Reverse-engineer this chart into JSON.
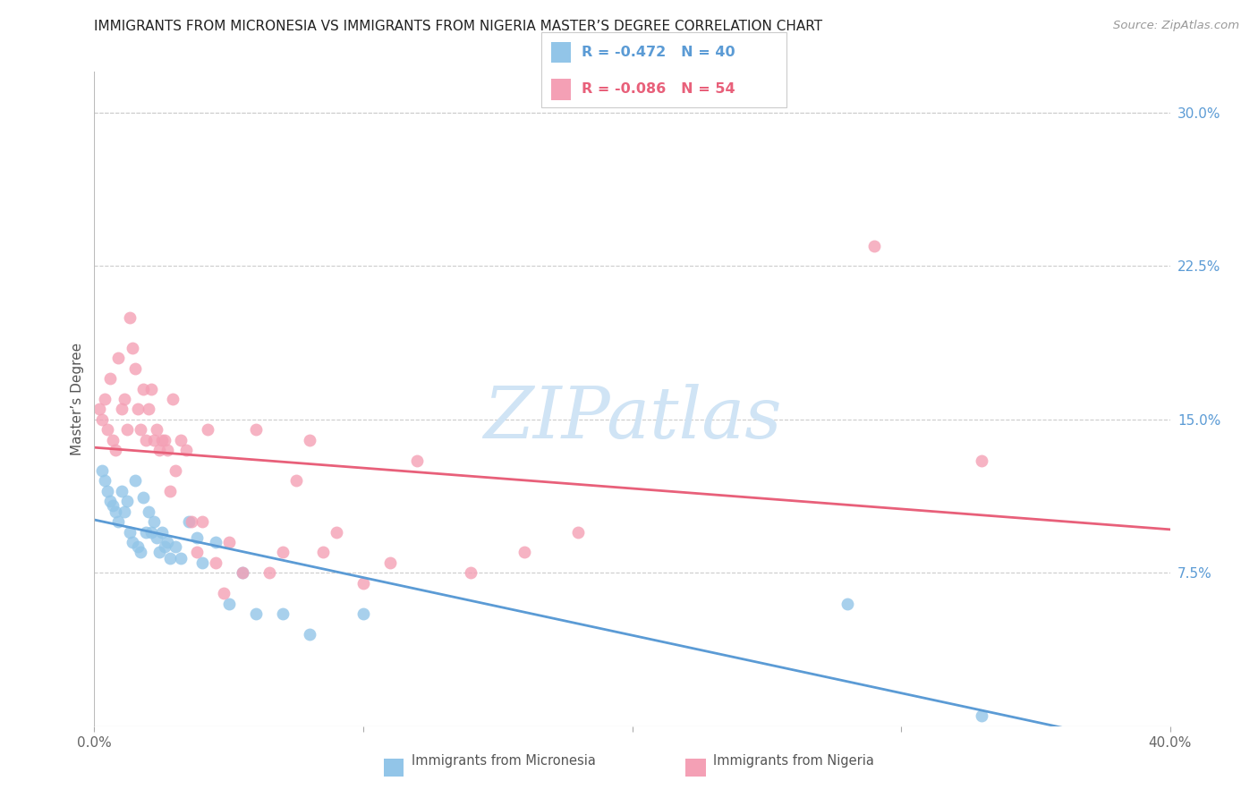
{
  "title": "IMMIGRANTS FROM MICRONESIA VS IMMIGRANTS FROM NIGERIA MASTER’S DEGREE CORRELATION CHART",
  "source": "Source: ZipAtlas.com",
  "ylabel": "Master’s Degree",
  "right_yticks": [
    "30.0%",
    "22.5%",
    "15.0%",
    "7.5%"
  ],
  "right_ytick_vals": [
    0.3,
    0.225,
    0.15,
    0.075
  ],
  "xlim": [
    0.0,
    0.4
  ],
  "ylim": [
    0.0,
    0.32
  ],
  "legend_R1": "R = -0.472",
  "legend_N1": "N = 40",
  "legend_R2": "R = -0.086",
  "legend_N2": "N = 54",
  "color_blue": "#92C5E8",
  "color_pink": "#F4A0B5",
  "color_blue_line": "#5B9BD5",
  "color_pink_line": "#E8607A",
  "color_blue_label": "#5B9BD5",
  "color_pink_label": "#E8607A",
  "color_right_axis": "#5B9BD5",
  "watermark_color": "#D0E4F5",
  "watermark_text": "ZIPatlas",
  "micronesia_x": [
    0.003,
    0.004,
    0.005,
    0.006,
    0.007,
    0.008,
    0.009,
    0.01,
    0.011,
    0.012,
    0.013,
    0.014,
    0.015,
    0.016,
    0.017,
    0.018,
    0.019,
    0.02,
    0.021,
    0.022,
    0.023,
    0.024,
    0.025,
    0.026,
    0.027,
    0.028,
    0.03,
    0.032,
    0.035,
    0.038,
    0.04,
    0.045,
    0.05,
    0.055,
    0.06,
    0.07,
    0.08,
    0.1,
    0.28,
    0.33
  ],
  "micronesia_y": [
    0.125,
    0.12,
    0.115,
    0.11,
    0.108,
    0.105,
    0.1,
    0.115,
    0.105,
    0.11,
    0.095,
    0.09,
    0.12,
    0.088,
    0.085,
    0.112,
    0.095,
    0.105,
    0.095,
    0.1,
    0.092,
    0.085,
    0.095,
    0.088,
    0.09,
    0.082,
    0.088,
    0.082,
    0.1,
    0.092,
    0.08,
    0.09,
    0.06,
    0.075,
    0.055,
    0.055,
    0.045,
    0.055,
    0.06,
    0.005
  ],
  "nigeria_x": [
    0.002,
    0.003,
    0.004,
    0.005,
    0.006,
    0.007,
    0.008,
    0.009,
    0.01,
    0.011,
    0.012,
    0.013,
    0.014,
    0.015,
    0.016,
    0.017,
    0.018,
    0.019,
    0.02,
    0.021,
    0.022,
    0.023,
    0.024,
    0.025,
    0.026,
    0.027,
    0.028,
    0.029,
    0.03,
    0.032,
    0.034,
    0.036,
    0.038,
    0.04,
    0.042,
    0.045,
    0.048,
    0.05,
    0.055,
    0.06,
    0.065,
    0.07,
    0.075,
    0.08,
    0.085,
    0.09,
    0.1,
    0.11,
    0.12,
    0.14,
    0.16,
    0.18,
    0.29,
    0.33
  ],
  "nigeria_y": [
    0.155,
    0.15,
    0.16,
    0.145,
    0.17,
    0.14,
    0.135,
    0.18,
    0.155,
    0.16,
    0.145,
    0.2,
    0.185,
    0.175,
    0.155,
    0.145,
    0.165,
    0.14,
    0.155,
    0.165,
    0.14,
    0.145,
    0.135,
    0.14,
    0.14,
    0.135,
    0.115,
    0.16,
    0.125,
    0.14,
    0.135,
    0.1,
    0.085,
    0.1,
    0.145,
    0.08,
    0.065,
    0.09,
    0.075,
    0.145,
    0.075,
    0.085,
    0.12,
    0.14,
    0.085,
    0.095,
    0.07,
    0.08,
    0.13,
    0.075,
    0.085,
    0.095,
    0.235,
    0.13
  ]
}
